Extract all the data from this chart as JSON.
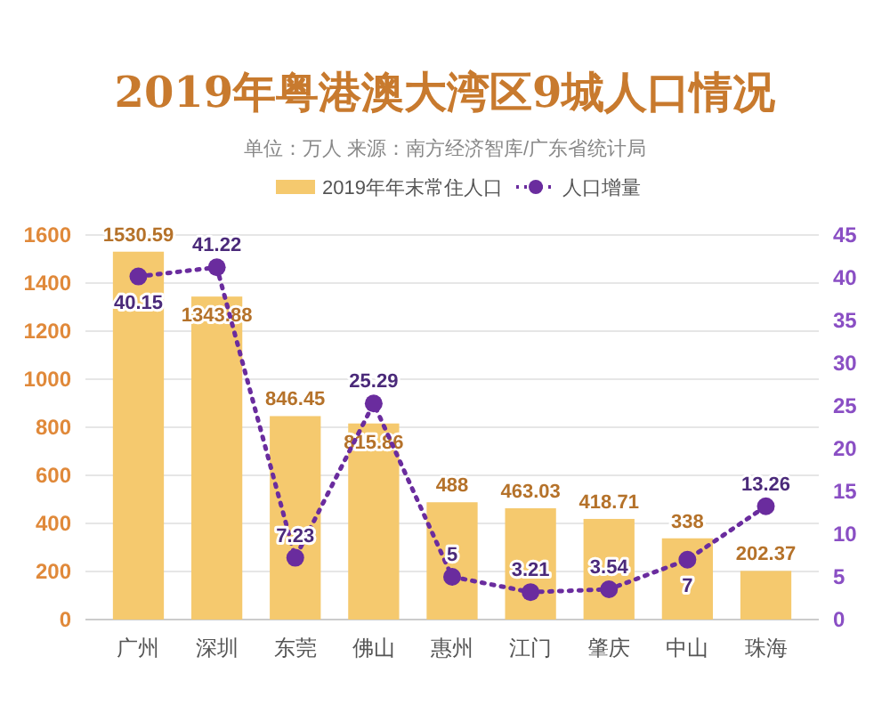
{
  "chart_data": {
    "type": "bar",
    "title": "2019年粤港澳大湾区9城人口情况",
    "subtitle": "单位：万人 来源：南方经济智库/广东省统计局",
    "categories": [
      "广州",
      "深圳",
      "东莞",
      "佛山",
      "惠州",
      "江门",
      "肇庆",
      "中山",
      "珠海"
    ],
    "series": [
      {
        "name": "2019年年末常住人口",
        "color": "#f5c96e",
        "values": [
          1530.59,
          1343.88,
          846.45,
          815.86,
          488,
          463.03,
          418.71,
          338,
          202.37
        ]
      },
      {
        "name": "人口增量",
        "type": "line",
        "axis": "y2",
        "color": "#6a2c9e",
        "marker": "circle",
        "line_style": "dotted",
        "values": [
          40.15,
          41.22,
          7.23,
          25.29,
          5,
          3.21,
          3.54,
          7,
          13.26
        ]
      }
    ],
    "ylim": [
      0,
      1600
    ],
    "yticks": [
      0,
      200,
      400,
      600,
      800,
      1000,
      1200,
      1400,
      1600
    ],
    "y2lim": [
      0,
      45
    ],
    "y2ticks": [
      0,
      5,
      10,
      15,
      20,
      25,
      30,
      35,
      40,
      45
    ],
    "grid": "y",
    "legend": "top",
    "data_labels": true
  }
}
